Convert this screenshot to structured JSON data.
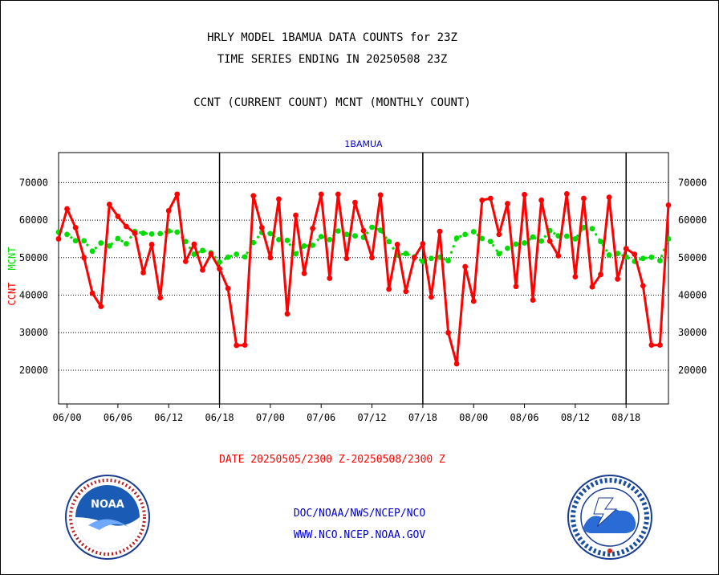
{
  "titles": {
    "line1": "HRLY MODEL 1BAMUA DATA COUNTS for 23Z",
    "line2": "TIME SERIES ENDING IN 20250508 23Z",
    "line3": "CCNT (CURRENT COUNT) MCNT (MONTHLY COUNT)"
  },
  "date_range": "DATE 20250505/2300 Z-20250508/2300 Z",
  "footer": {
    "line1": "DOC/NOAA/NWS/NCEP/NCO",
    "line2": "WWW.NCO.NCEP.NOAA.GOV"
  },
  "logos": {
    "left": "noaa-logo",
    "right": "national-weather-service-logo"
  },
  "chart_data": {
    "type": "line",
    "title": "1BAMUA",
    "ylabel_left": "CCNT",
    "ylabel_green": "MCNT",
    "x_tick_labels": [
      "06/00",
      "06/06",
      "06/12",
      "06/18",
      "07/00",
      "07/06",
      "07/12",
      "07/18",
      "08/00",
      "08/06",
      "08/12",
      "08/18"
    ],
    "day_separators_hours": [
      18,
      42,
      66
    ],
    "x_range_hours": [
      -1,
      71
    ],
    "ylim": [
      11000,
      78000
    ],
    "y_ticks": [
      20000,
      30000,
      40000,
      50000,
      60000,
      70000
    ],
    "y_tick_labels": [
      "20000",
      "30000",
      "40000",
      "50000",
      "60000",
      "70000"
    ],
    "grid": true,
    "colors": {
      "ccnt": "#ff0000",
      "mcnt": "#00dd00",
      "title": "#0000cc"
    },
    "series": [
      {
        "name": "CCNT",
        "hours": [
          -1,
          0,
          1,
          2,
          3,
          4,
          5,
          6,
          7,
          8,
          9,
          10,
          11,
          12,
          13,
          14,
          15,
          16,
          17,
          18,
          19,
          20,
          21,
          22,
          23,
          24,
          25,
          26,
          27,
          28,
          29,
          30,
          31,
          32,
          33,
          34,
          35,
          36,
          37,
          38,
          39,
          40,
          41,
          42,
          43,
          44,
          45,
          46,
          47,
          48,
          49,
          50,
          51,
          52,
          53,
          54,
          55,
          56,
          57,
          58,
          59,
          60,
          61,
          62,
          63,
          64,
          65,
          66,
          67,
          68,
          69,
          70,
          71
        ],
        "values": [
          55000,
          63000,
          58000,
          50000,
          40500,
          37000,
          64200,
          61000,
          58300,
          56500,
          46000,
          53500,
          39300,
          62500,
          66900,
          49000,
          53600,
          46700,
          51000,
          47000,
          41800,
          26600,
          26700,
          66500,
          58000,
          50000,
          65600,
          35000,
          61300,
          45800,
          57800,
          66900,
          44500,
          66900,
          49800,
          64700,
          57200,
          50000,
          66700,
          41600,
          53500,
          41000,
          50000,
          53700,
          39500,
          57000,
          30000,
          21700,
          47600,
          38400,
          65300,
          65800,
          56200,
          64400,
          42300,
          66800,
          38700,
          65300,
          54400,
          50500,
          67000,
          44900,
          65800,
          42200,
          45500,
          66100,
          44300,
          52400,
          50900,
          42500,
          26700,
          26700,
          64000
        ]
      },
      {
        "name": "MCNT",
        "hours": [
          -1,
          0,
          1,
          2,
          3,
          4,
          5,
          6,
          7,
          8,
          9,
          10,
          11,
          12,
          13,
          14,
          15,
          16,
          17,
          18,
          19,
          20,
          21,
          22,
          23,
          24,
          25,
          26,
          27,
          28,
          29,
          30,
          31,
          32,
          33,
          34,
          35,
          36,
          37,
          38,
          39,
          40,
          41,
          42,
          43,
          44,
          45,
          46,
          47,
          48,
          49,
          50,
          51,
          52,
          53,
          54,
          55,
          56,
          57,
          58,
          59,
          60,
          61,
          62,
          63,
          64,
          65,
          66,
          67,
          68,
          69,
          70,
          71
        ],
        "values": [
          56800,
          56200,
          54500,
          54500,
          51700,
          53900,
          53100,
          55100,
          53700,
          57000,
          56500,
          56300,
          56400,
          57100,
          56800,
          54300,
          50900,
          51900,
          51300,
          48800,
          50100,
          50900,
          50200,
          54000,
          56700,
          56400,
          54800,
          54600,
          51000,
          53100,
          53300,
          55600,
          54800,
          57100,
          56200,
          55800,
          55400,
          58100,
          57300,
          54300,
          50700,
          51100,
          50200,
          49000,
          49800,
          50100,
          49200,
          55200,
          56200,
          56900,
          55100,
          54300,
          51000,
          52500,
          53600,
          53900,
          55500,
          54400,
          57200,
          55800,
          55700,
          55000,
          58000,
          57700,
          54300,
          50700,
          51100,
          50200,
          49000,
          49800,
          50100,
          49200,
          55000
        ]
      }
    ]
  }
}
